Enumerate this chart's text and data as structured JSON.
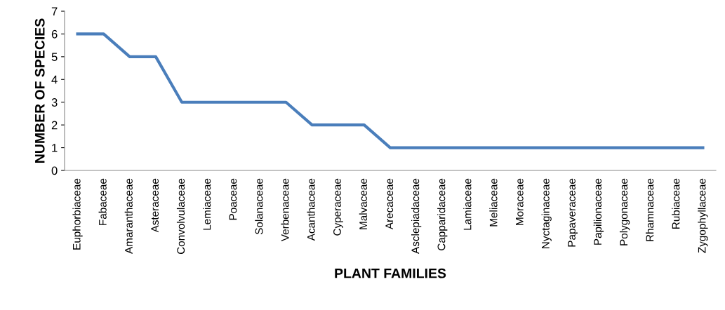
{
  "chart_data": {
    "type": "line",
    "xlabel": "PLANT FAMILIES",
    "ylabel": "NUMBER OF SPECIES",
    "categories": [
      "Euphorbiaceae",
      "Fabaceae",
      "Amaranthaceae",
      "Asteraceae",
      "Convolvulaceae",
      "Lemiaceae",
      "Poaceae",
      "Solanaceae",
      "Verbenaceae",
      "Acanthaceae",
      "Cyperaceae",
      "Malvaceae",
      "Arecaceae",
      "Asclepiadaceae",
      "Capparidaceae",
      "Lamiaceae",
      "Meliaceae",
      "Moraceae",
      "Nyctaginaceae",
      "Papaveraceae",
      "Papilionaceae",
      "Polygonaceae",
      "Rhamnaceae",
      "Rubiaceae",
      "Zygophyllaceae"
    ],
    "series": [
      {
        "color": "#4a7ebb",
        "values": [
          6,
          6,
          5,
          5,
          3,
          3,
          3,
          3,
          3,
          2,
          2,
          2,
          1,
          1,
          1,
          1,
          1,
          1,
          1,
          1,
          1,
          1,
          1,
          1,
          1
        ]
      }
    ],
    "ylim": [
      0,
      7
    ],
    "yticks": [
      0,
      1,
      2,
      3,
      4,
      5,
      6,
      7
    ],
    "grid": false,
    "legend": false,
    "marker": "none",
    "line_style": "solid"
  }
}
